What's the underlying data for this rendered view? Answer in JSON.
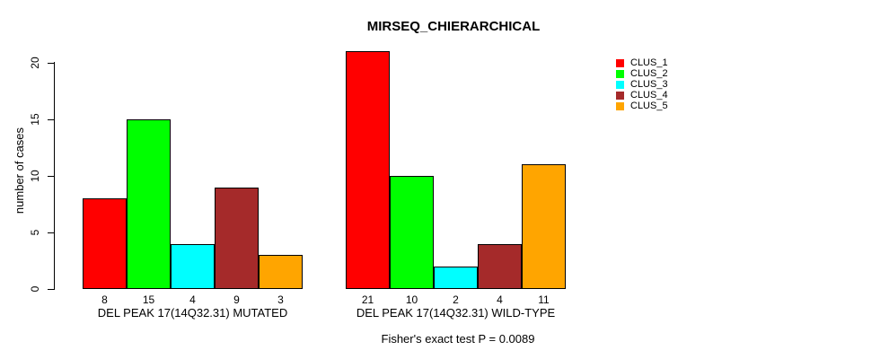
{
  "chart_data": {
    "type": "bar",
    "title": "MIRSEQ_CHIERARCHICAL",
    "ylabel": "number of cases",
    "ylim": [
      0,
      21
    ],
    "yticks": [
      0,
      5,
      10,
      15,
      20
    ],
    "grid": false,
    "legend_position": "right",
    "bar_border_color": "#000000",
    "clusters": [
      {
        "name": "CLUS_1",
        "color": "#FF0000"
      },
      {
        "name": "CLUS_2",
        "color": "#00FF00"
      },
      {
        "name": "CLUS_3",
        "color": "#00FFFF"
      },
      {
        "name": "CLUS_4",
        "color": "#A52A2A"
      },
      {
        "name": "CLUS_5",
        "color": "#FFA500"
      }
    ],
    "categories": [
      "DEL PEAK 17(14Q32.31) MUTATED",
      "DEL PEAK 17(14Q32.31) WILD-TYPE"
    ],
    "series": [
      {
        "name": "CLUS_1",
        "values": [
          8,
          21
        ]
      },
      {
        "name": "CLUS_2",
        "values": [
          15,
          10
        ]
      },
      {
        "name": "CLUS_3",
        "values": [
          4,
          2
        ]
      },
      {
        "name": "CLUS_4",
        "values": [
          9,
          4
        ]
      },
      {
        "name": "CLUS_5",
        "values": [
          3,
          11
        ]
      }
    ],
    "groups": [
      {
        "label": "DEL PEAK 17(14Q32.31) MUTATED",
        "values": [
          8,
          15,
          4,
          9,
          3
        ]
      },
      {
        "label": "DEL PEAK 17(14Q32.31) WILD-TYPE",
        "values": [
          21,
          10,
          2,
          4,
          11
        ]
      }
    ],
    "footnote": "Fisher's exact test P = 0.0089"
  }
}
